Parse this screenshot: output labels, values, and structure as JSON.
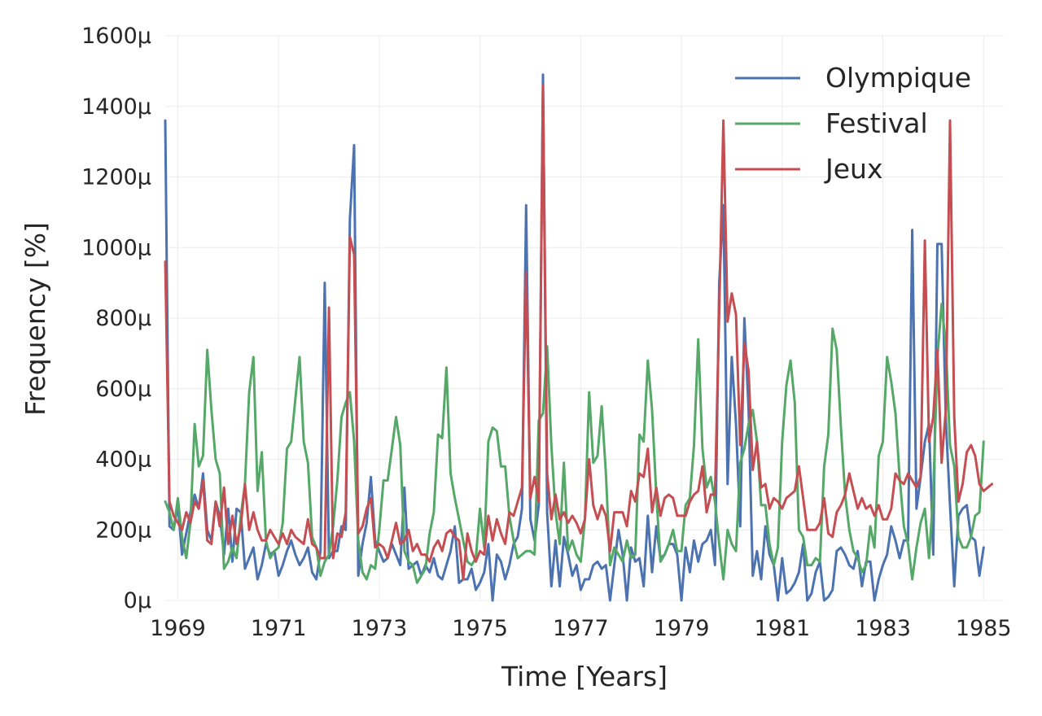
{
  "chart_data": {
    "type": "line",
    "xlabel": "Time [Years]",
    "ylabel": "Frequency [%]",
    "xlim": [
      1968.75,
      1985.4
    ],
    "ylim": [
      0,
      1600
    ],
    "x_ticks": [
      1969,
      1971,
      1973,
      1975,
      1977,
      1979,
      1981,
      1983,
      1985
    ],
    "x_tick_labels": [
      "1969",
      "1971",
      "1973",
      "1975",
      "1977",
      "1979",
      "1981",
      "1983",
      "1985"
    ],
    "y_ticks": [
      0,
      200,
      400,
      600,
      800,
      1000,
      1200,
      1400,
      1600
    ],
    "y_tick_labels": [
      "0μ",
      "200μ",
      "400μ",
      "600μ",
      "800μ",
      "1000μ",
      "1200μ",
      "1400μ",
      "1600μ"
    ],
    "grid": true,
    "legend_position": "top-right",
    "start": 1968.75,
    "step": 0.083333,
    "series": [
      {
        "name": "Olympique",
        "color": "#4c72b0",
        "values": [
          1360,
          210,
          200,
          270,
          130,
          190,
          250,
          300,
          260,
          360,
          200,
          170,
          280,
          240,
          130,
          260,
          110,
          260,
          250,
          90,
          120,
          150,
          60,
          100,
          160,
          130,
          140,
          70,
          100,
          140,
          170,
          130,
          100,
          120,
          150,
          80,
          60,
          140,
          900,
          120,
          140,
          140,
          210,
          200,
          1080,
          1290,
          70,
          160,
          220,
          350,
          170,
          140,
          110,
          120,
          160,
          130,
          100,
          320,
          90,
          100,
          110,
          70,
          100,
          80,
          120,
          70,
          60,
          100,
          140,
          210,
          50,
          60,
          60,
          90,
          30,
          50,
          80,
          160,
          0,
          130,
          110,
          60,
          100,
          160,
          180,
          260,
          1120,
          230,
          170,
          270,
          1490,
          250,
          40,
          170,
          40,
          180,
          130,
          70,
          100,
          30,
          60,
          60,
          100,
          110,
          90,
          100,
          0,
          100,
          200,
          130,
          0,
          150,
          110,
          120,
          40,
          240,
          80,
          210,
          120,
          130,
          160,
          160,
          130,
          0,
          150,
          80,
          170,
          110,
          160,
          170,
          200,
          100,
          900,
          1120,
          330,
          690,
          500,
          210,
          800,
          540,
          70,
          140,
          60,
          210,
          130,
          100,
          0,
          120,
          20,
          30,
          50,
          80,
          160,
          0,
          20,
          80,
          110,
          0,
          10,
          30,
          140,
          150,
          130,
          100,
          90,
          140,
          40,
          110,
          110,
          0,
          60,
          100,
          130,
          210,
          170,
          120,
          170,
          170,
          1050,
          260,
          350,
          450,
          500,
          130,
          1010,
          1010,
          510,
          270,
          40,
          240,
          260,
          270,
          180,
          170,
          70,
          150
        ]
      },
      {
        "name": "Festival",
        "color": "#55a868",
        "values": [
          280,
          250,
          200,
          290,
          180,
          120,
          220,
          500,
          380,
          410,
          710,
          540,
          400,
          360,
          90,
          110,
          150,
          120,
          240,
          330,
          590,
          690,
          310,
          420,
          170,
          120,
          140,
          150,
          220,
          430,
          450,
          570,
          690,
          450,
          390,
          180,
          150,
          70,
          110,
          130,
          210,
          340,
          520,
          560,
          590,
          450,
          170,
          80,
          60,
          100,
          90,
          200,
          340,
          340,
          430,
          520,
          440,
          140,
          110,
          100,
          50,
          70,
          90,
          190,
          250,
          470,
          460,
          660,
          360,
          290,
          230,
          170,
          110,
          100,
          120,
          260,
          150,
          450,
          490,
          480,
          380,
          380,
          240,
          170,
          120,
          130,
          140,
          140,
          130,
          510,
          530,
          720,
          440,
          250,
          160,
          390,
          140,
          170,
          130,
          110,
          230,
          590,
          390,
          410,
          550,
          360,
          100,
          150,
          130,
          110,
          170,
          120,
          130,
          470,
          450,
          680,
          540,
          300,
          110,
          130,
          160,
          200,
          140,
          140,
          270,
          290,
          440,
          740,
          430,
          320,
          350,
          280,
          160,
          60,
          200,
          160,
          140,
          390,
          430,
          500,
          540,
          450,
          270,
          270,
          160,
          100,
          150,
          450,
          610,
          680,
          560,
          200,
          180,
          100,
          100,
          120,
          110,
          380,
          470,
          770,
          710,
          490,
          300,
          200,
          140,
          120,
          80,
          100,
          210,
          150,
          410,
          450,
          690,
          620,
          530,
          350,
          210,
          160,
          60,
          150,
          220,
          260,
          120,
          300,
          690,
          840,
          720,
          440,
          380,
          180,
          150,
          150,
          180,
          240,
          250,
          450
        ]
      },
      {
        "name": "Jeux",
        "color": "#c44e52",
        "values": [
          960,
          280,
          240,
          220,
          200,
          250,
          220,
          280,
          260,
          340,
          170,
          160,
          280,
          210,
          320,
          160,
          240,
          160,
          210,
          330,
          200,
          250,
          200,
          170,
          170,
          200,
          180,
          160,
          190,
          160,
          200,
          180,
          170,
          160,
          230,
          160,
          150,
          120,
          120,
          830,
          120,
          190,
          180,
          250,
          1030,
          980,
          190,
          210,
          260,
          290,
          150,
          160,
          150,
          120,
          170,
          220,
          160,
          170,
          200,
          140,
          160,
          130,
          130,
          110,
          150,
          170,
          140,
          190,
          200,
          180,
          170,
          60,
          190,
          140,
          110,
          140,
          130,
          240,
          170,
          230,
          190,
          160,
          250,
          240,
          280,
          320,
          930,
          290,
          350,
          280,
          1460,
          360,
          230,
          300,
          230,
          250,
          220,
          240,
          220,
          190,
          230,
          400,
          270,
          230,
          270,
          240,
          140,
          250,
          250,
          250,
          210,
          310,
          280,
          360,
          350,
          430,
          250,
          320,
          240,
          290,
          300,
          290,
          240,
          240,
          240,
          280,
          300,
          310,
          380,
          250,
          300,
          300,
          820,
          1360,
          790,
          870,
          810,
          440,
          730,
          650,
          370,
          450,
          320,
          330,
          260,
          290,
          280,
          260,
          290,
          300,
          310,
          380,
          290,
          200,
          200,
          200,
          220,
          290,
          190,
          180,
          250,
          270,
          300,
          360,
          310,
          260,
          290,
          260,
          270,
          240,
          270,
          230,
          230,
          260,
          360,
          340,
          330,
          360,
          340,
          320,
          350,
          1020,
          450,
          520,
          710,
          390,
          540,
          1360,
          520,
          280,
          330,
          420,
          440,
          410,
          330,
          310,
          320,
          330
        ]
      }
    ]
  }
}
